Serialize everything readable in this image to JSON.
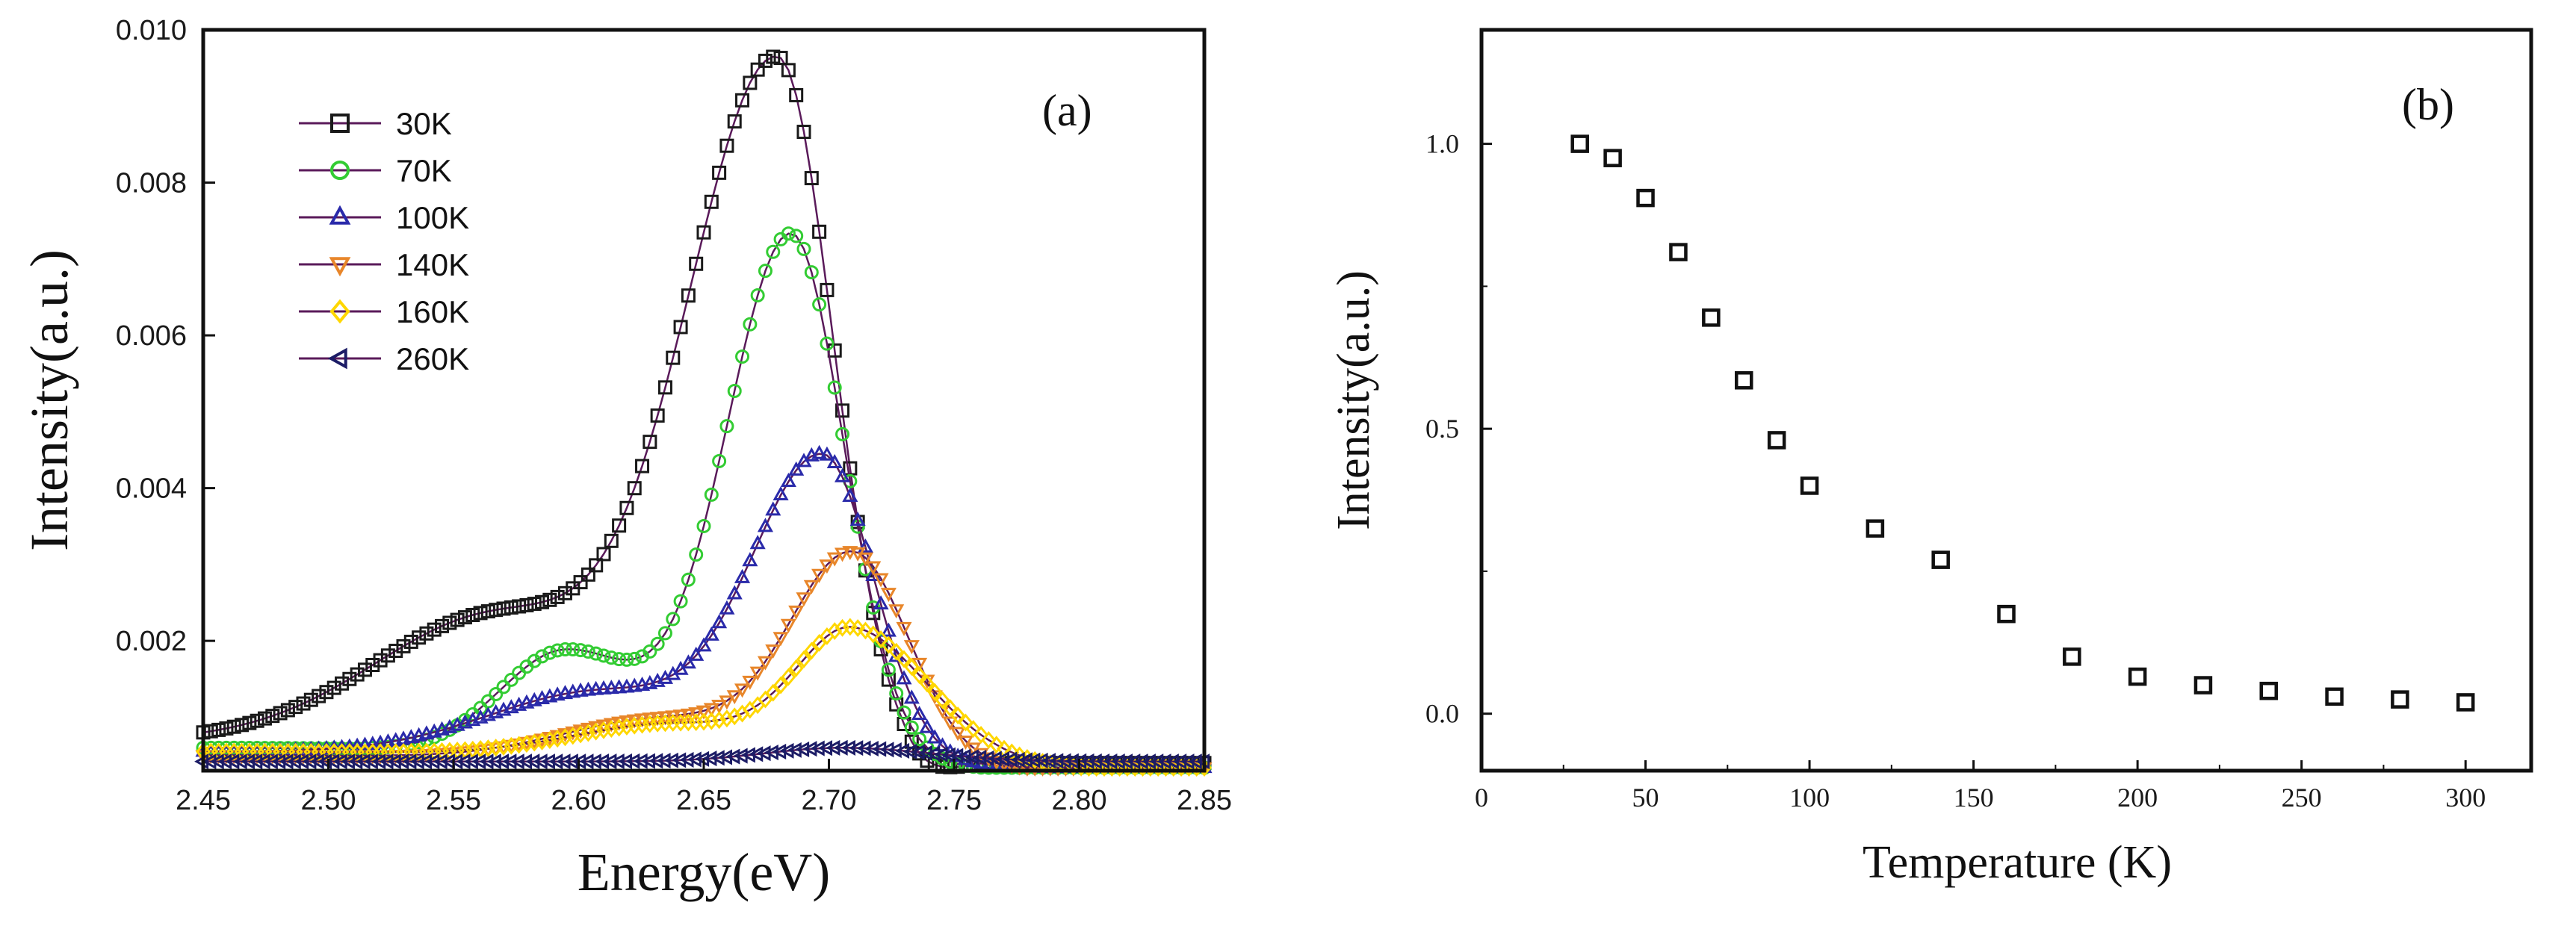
{
  "chart_data": [
    {
      "panel": "(a)",
      "type": "line",
      "xlabel": "Energy(eV)",
      "ylabel": "Intensity(a.u.)",
      "xlim": [
        2.45,
        2.85
      ],
      "ylim": [
        0.0003,
        0.01
      ],
      "xticks": [
        "2.45",
        "2.50",
        "2.55",
        "2.60",
        "2.65",
        "2.70",
        "2.75",
        "2.80",
        "2.85"
      ],
      "yticks": [
        "0.002",
        "0.004",
        "0.006",
        "0.008",
        "0.010"
      ],
      "legend_position": "top-left",
      "series": [
        {
          "name": "30K",
          "color": "#1a1a1a",
          "marker": "square",
          "components": [
            [
              0.0092,
              2.68,
              0.036,
              0.022
            ],
            [
              0.0018,
              2.57,
              0.05,
              0.05
            ],
            [
              0.0006,
              2.45,
              0.15,
              0.15
            ]
          ],
          "base": 0.0001,
          "decay": 2.73
        },
        {
          "name": "70K",
          "color": "#33cc33",
          "marker": "circle",
          "components": [
            [
              0.0069,
              2.685,
              0.026,
              0.021
            ],
            [
              0.00135,
              2.595,
              0.026,
              0.03
            ],
            [
              0.0005,
              2.45,
              0.12,
              0.25
            ]
          ],
          "base": 0.0001
        },
        {
          "name": "100K",
          "color": "#2a2aaa",
          "marker": "triangle-up",
          "components": [
            [
              0.0039,
              2.698,
              0.028,
              0.02
            ],
            [
              0.00085,
              2.61,
              0.045,
              0.045
            ],
            [
              0.00045,
              2.45,
              0.14,
              0.3
            ]
          ],
          "base": 0.0001
        },
        {
          "name": "140K",
          "color": "#e8862a",
          "marker": "triangle-down",
          "components": [
            [
              0.0027,
              2.71,
              0.025,
              0.022
            ],
            [
              0.00055,
              2.635,
              0.04,
              0.04
            ],
            [
              0.0004,
              2.45,
              0.14,
              0.3
            ]
          ],
          "base": 0.0001
        },
        {
          "name": "160K",
          "color": "#ffd700",
          "marker": "diamond",
          "components": [
            [
              0.0016,
              2.71,
              0.022,
              0.03
            ],
            [
              0.00045,
              2.64,
              0.04,
              0.05
            ],
            [
              0.00045,
              2.45,
              0.14,
              0.3
            ]
          ],
          "base": 0.0001
        },
        {
          "name": "260K",
          "color": "#1c1c66",
          "marker": "triangle-left",
          "components": [
            [
              0.00018,
              2.705,
              0.03,
              0.035
            ]
          ],
          "base": 0.00042
        }
      ]
    },
    {
      "panel": "(b)",
      "type": "scatter",
      "xlabel": "Temperature (K)",
      "ylabel": "Intensity(a.u.)",
      "xlim": [
        0,
        320
      ],
      "ylim": [
        -0.1,
        1.2
      ],
      "xticks": [
        "0",
        "50",
        "100",
        "150",
        "200",
        "250",
        "300"
      ],
      "yticks": [
        "0.0",
        "0.5",
        "1.0"
      ],
      "marker": "square",
      "x": [
        30,
        40,
        50,
        60,
        70,
        80,
        90,
        100,
        120,
        140,
        160,
        180,
        200,
        220,
        240,
        260,
        280,
        300
      ],
      "y": [
        1.0,
        0.975,
        0.905,
        0.81,
        0.695,
        0.585,
        0.48,
        0.4,
        0.325,
        0.27,
        0.175,
        0.1,
        0.065,
        0.05,
        0.04,
        0.03,
        0.025,
        0.02
      ]
    }
  ]
}
